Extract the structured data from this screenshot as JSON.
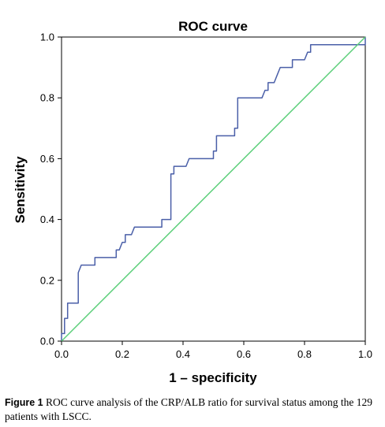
{
  "chart_data": {
    "type": "line",
    "title": "ROC curve",
    "xlabel": "1 – specificity",
    "ylabel": "Sensitivity",
    "xlim": [
      0.0,
      1.0
    ],
    "ylim": [
      0.0,
      1.0
    ],
    "x_ticks": [
      "0.0",
      "0.2",
      "0.4",
      "0.6",
      "0.8",
      "1.0"
    ],
    "y_ticks": [
      "0.0",
      "0.2",
      "0.4",
      "0.6",
      "0.8",
      "1.0"
    ],
    "grid": false,
    "colors": {
      "roc": "#4a5fa8",
      "reference": "#5ccf7a"
    },
    "series": [
      {
        "points": [
          [
            0.0,
            0.0
          ],
          [
            0.0,
            0.025
          ],
          [
            0.01,
            0.025
          ],
          [
            0.01,
            0.075
          ],
          [
            0.02,
            0.075
          ],
          [
            0.02,
            0.125
          ],
          [
            0.055,
            0.125
          ],
          [
            0.055,
            0.225
          ],
          [
            0.065,
            0.25
          ],
          [
            0.11,
            0.25
          ],
          [
            0.11,
            0.275
          ],
          [
            0.18,
            0.275
          ],
          [
            0.18,
            0.3
          ],
          [
            0.19,
            0.3
          ],
          [
            0.2,
            0.325
          ],
          [
            0.21,
            0.325
          ],
          [
            0.21,
            0.35
          ],
          [
            0.23,
            0.35
          ],
          [
            0.24,
            0.375
          ],
          [
            0.33,
            0.375
          ],
          [
            0.33,
            0.4
          ],
          [
            0.36,
            0.4
          ],
          [
            0.36,
            0.55
          ],
          [
            0.37,
            0.55
          ],
          [
            0.37,
            0.575
          ],
          [
            0.41,
            0.575
          ],
          [
            0.42,
            0.6
          ],
          [
            0.5,
            0.6
          ],
          [
            0.5,
            0.625
          ],
          [
            0.51,
            0.625
          ],
          [
            0.51,
            0.675
          ],
          [
            0.57,
            0.675
          ],
          [
            0.57,
            0.7
          ],
          [
            0.58,
            0.7
          ],
          [
            0.58,
            0.8
          ],
          [
            0.66,
            0.8
          ],
          [
            0.67,
            0.825
          ],
          [
            0.68,
            0.825
          ],
          [
            0.68,
            0.85
          ],
          [
            0.7,
            0.85
          ],
          [
            0.71,
            0.875
          ],
          [
            0.72,
            0.9
          ],
          [
            0.76,
            0.9
          ],
          [
            0.76,
            0.925
          ],
          [
            0.8,
            0.925
          ],
          [
            0.81,
            0.95
          ],
          [
            0.82,
            0.95
          ],
          [
            0.82,
            0.975
          ],
          [
            1.0,
            0.975
          ],
          [
            1.0,
            1.0
          ]
        ]
      },
      {
        "points": [
          [
            0.0,
            0.0
          ],
          [
            1.0,
            1.0
          ]
        ]
      }
    ]
  },
  "caption": {
    "label": "Figure 1",
    "text": " ROC curve analysis of the CRP/ALB ratio for survival status among the 129 patients with LSCC."
  }
}
